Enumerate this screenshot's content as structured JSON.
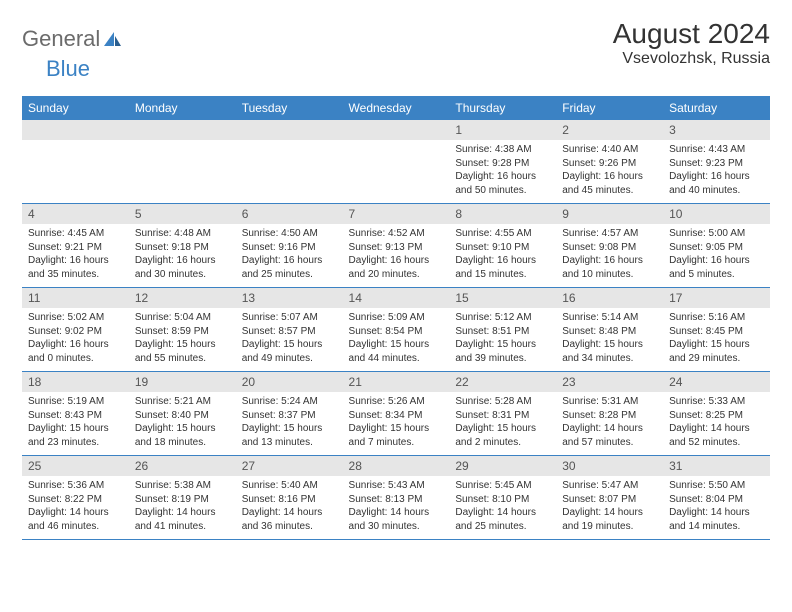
{
  "brand": {
    "general": "General",
    "blue": "Blue"
  },
  "title": "August 2024",
  "location": "Vsevolozhsk, Russia",
  "colors": {
    "header_bg": "#3b82c4",
    "header_text": "#ffffff",
    "daynum_bg": "#e6e6e6",
    "text": "#333333",
    "logo_gray": "#6b6b6b",
    "logo_blue": "#3b82c4"
  },
  "weekdays": [
    "Sunday",
    "Monday",
    "Tuesday",
    "Wednesday",
    "Thursday",
    "Friday",
    "Saturday"
  ],
  "weeks": [
    [
      null,
      null,
      null,
      null,
      {
        "n": "1",
        "sr": "Sunrise: 4:38 AM",
        "ss": "Sunset: 9:28 PM",
        "dl": "Daylight: 16 hours and 50 minutes."
      },
      {
        "n": "2",
        "sr": "Sunrise: 4:40 AM",
        "ss": "Sunset: 9:26 PM",
        "dl": "Daylight: 16 hours and 45 minutes."
      },
      {
        "n": "3",
        "sr": "Sunrise: 4:43 AM",
        "ss": "Sunset: 9:23 PM",
        "dl": "Daylight: 16 hours and 40 minutes."
      }
    ],
    [
      {
        "n": "4",
        "sr": "Sunrise: 4:45 AM",
        "ss": "Sunset: 9:21 PM",
        "dl": "Daylight: 16 hours and 35 minutes."
      },
      {
        "n": "5",
        "sr": "Sunrise: 4:48 AM",
        "ss": "Sunset: 9:18 PM",
        "dl": "Daylight: 16 hours and 30 minutes."
      },
      {
        "n": "6",
        "sr": "Sunrise: 4:50 AM",
        "ss": "Sunset: 9:16 PM",
        "dl": "Daylight: 16 hours and 25 minutes."
      },
      {
        "n": "7",
        "sr": "Sunrise: 4:52 AM",
        "ss": "Sunset: 9:13 PM",
        "dl": "Daylight: 16 hours and 20 minutes."
      },
      {
        "n": "8",
        "sr": "Sunrise: 4:55 AM",
        "ss": "Sunset: 9:10 PM",
        "dl": "Daylight: 16 hours and 15 minutes."
      },
      {
        "n": "9",
        "sr": "Sunrise: 4:57 AM",
        "ss": "Sunset: 9:08 PM",
        "dl": "Daylight: 16 hours and 10 minutes."
      },
      {
        "n": "10",
        "sr": "Sunrise: 5:00 AM",
        "ss": "Sunset: 9:05 PM",
        "dl": "Daylight: 16 hours and 5 minutes."
      }
    ],
    [
      {
        "n": "11",
        "sr": "Sunrise: 5:02 AM",
        "ss": "Sunset: 9:02 PM",
        "dl": "Daylight: 16 hours and 0 minutes."
      },
      {
        "n": "12",
        "sr": "Sunrise: 5:04 AM",
        "ss": "Sunset: 8:59 PM",
        "dl": "Daylight: 15 hours and 55 minutes."
      },
      {
        "n": "13",
        "sr": "Sunrise: 5:07 AM",
        "ss": "Sunset: 8:57 PM",
        "dl": "Daylight: 15 hours and 49 minutes."
      },
      {
        "n": "14",
        "sr": "Sunrise: 5:09 AM",
        "ss": "Sunset: 8:54 PM",
        "dl": "Daylight: 15 hours and 44 minutes."
      },
      {
        "n": "15",
        "sr": "Sunrise: 5:12 AM",
        "ss": "Sunset: 8:51 PM",
        "dl": "Daylight: 15 hours and 39 minutes."
      },
      {
        "n": "16",
        "sr": "Sunrise: 5:14 AM",
        "ss": "Sunset: 8:48 PM",
        "dl": "Daylight: 15 hours and 34 minutes."
      },
      {
        "n": "17",
        "sr": "Sunrise: 5:16 AM",
        "ss": "Sunset: 8:45 PM",
        "dl": "Daylight: 15 hours and 29 minutes."
      }
    ],
    [
      {
        "n": "18",
        "sr": "Sunrise: 5:19 AM",
        "ss": "Sunset: 8:43 PM",
        "dl": "Daylight: 15 hours and 23 minutes."
      },
      {
        "n": "19",
        "sr": "Sunrise: 5:21 AM",
        "ss": "Sunset: 8:40 PM",
        "dl": "Daylight: 15 hours and 18 minutes."
      },
      {
        "n": "20",
        "sr": "Sunrise: 5:24 AM",
        "ss": "Sunset: 8:37 PM",
        "dl": "Daylight: 15 hours and 13 minutes."
      },
      {
        "n": "21",
        "sr": "Sunrise: 5:26 AM",
        "ss": "Sunset: 8:34 PM",
        "dl": "Daylight: 15 hours and 7 minutes."
      },
      {
        "n": "22",
        "sr": "Sunrise: 5:28 AM",
        "ss": "Sunset: 8:31 PM",
        "dl": "Daylight: 15 hours and 2 minutes."
      },
      {
        "n": "23",
        "sr": "Sunrise: 5:31 AM",
        "ss": "Sunset: 8:28 PM",
        "dl": "Daylight: 14 hours and 57 minutes."
      },
      {
        "n": "24",
        "sr": "Sunrise: 5:33 AM",
        "ss": "Sunset: 8:25 PM",
        "dl": "Daylight: 14 hours and 52 minutes."
      }
    ],
    [
      {
        "n": "25",
        "sr": "Sunrise: 5:36 AM",
        "ss": "Sunset: 8:22 PM",
        "dl": "Daylight: 14 hours and 46 minutes."
      },
      {
        "n": "26",
        "sr": "Sunrise: 5:38 AM",
        "ss": "Sunset: 8:19 PM",
        "dl": "Daylight: 14 hours and 41 minutes."
      },
      {
        "n": "27",
        "sr": "Sunrise: 5:40 AM",
        "ss": "Sunset: 8:16 PM",
        "dl": "Daylight: 14 hours and 36 minutes."
      },
      {
        "n": "28",
        "sr": "Sunrise: 5:43 AM",
        "ss": "Sunset: 8:13 PM",
        "dl": "Daylight: 14 hours and 30 minutes."
      },
      {
        "n": "29",
        "sr": "Sunrise: 5:45 AM",
        "ss": "Sunset: 8:10 PM",
        "dl": "Daylight: 14 hours and 25 minutes."
      },
      {
        "n": "30",
        "sr": "Sunrise: 5:47 AM",
        "ss": "Sunset: 8:07 PM",
        "dl": "Daylight: 14 hours and 19 minutes."
      },
      {
        "n": "31",
        "sr": "Sunrise: 5:50 AM",
        "ss": "Sunset: 8:04 PM",
        "dl": "Daylight: 14 hours and 14 minutes."
      }
    ]
  ]
}
